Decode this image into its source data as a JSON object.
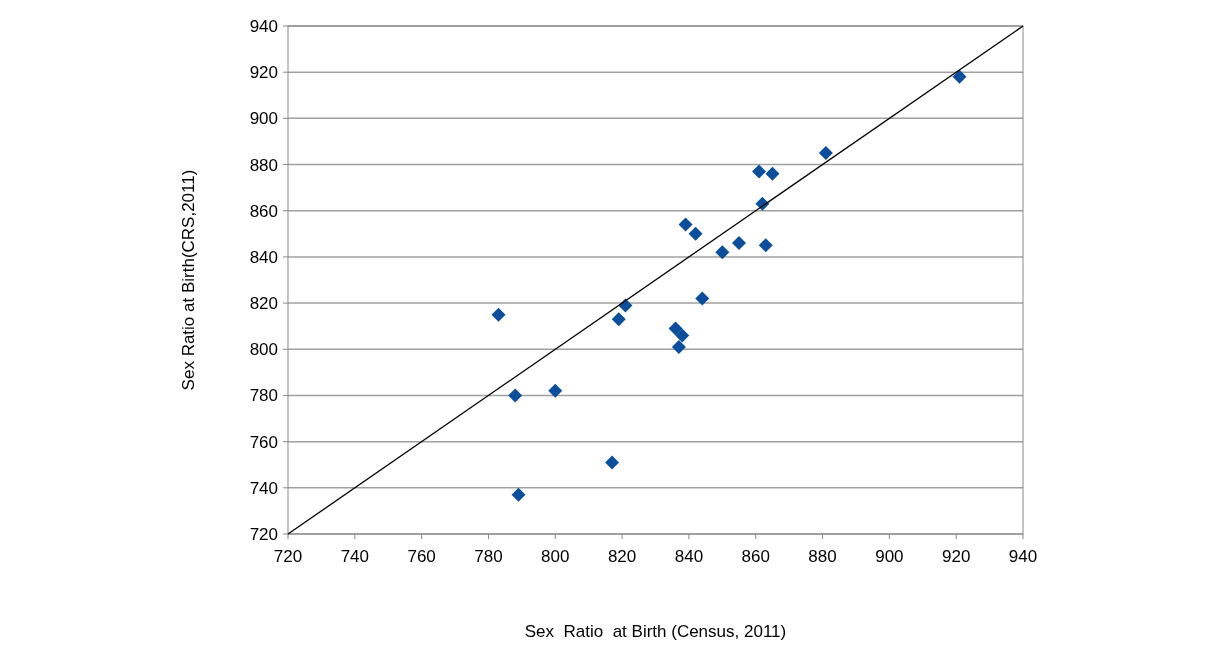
{
  "chart_data": {
    "type": "scatter",
    "xlabel": "Sex  Ratio  at Birth (Census, 2011)",
    "ylabel": "Sex Ratio at Birth(CRS,2011)",
    "xlim": [
      720,
      940
    ],
    "xticks": [
      720,
      740,
      760,
      780,
      800,
      820,
      840,
      860,
      880,
      900,
      920,
      940
    ],
    "ylim": [
      720,
      940
    ],
    "yticks": [
      720,
      740,
      760,
      780,
      800,
      820,
      840,
      860,
      880,
      900,
      920,
      940
    ],
    "grid": "y",
    "marker": "diamond",
    "series": [
      {
        "color": "#0b4f9c",
        "x": [
          783,
          788,
          789,
          800,
          817,
          819,
          821,
          836,
          838,
          837,
          839,
          842,
          844,
          850,
          855,
          861,
          865,
          862,
          863,
          881,
          921
        ],
        "values": [
          815,
          780,
          737,
          782,
          751,
          813,
          819,
          809,
          806,
          801,
          854,
          850,
          822,
          842,
          846,
          877,
          876,
          863,
          845,
          885,
          918
        ]
      },
      {
        "type": "line",
        "color": "#000000",
        "marker": "none",
        "x": [
          720,
          940
        ],
        "values": [
          720,
          940
        ]
      }
    ]
  }
}
